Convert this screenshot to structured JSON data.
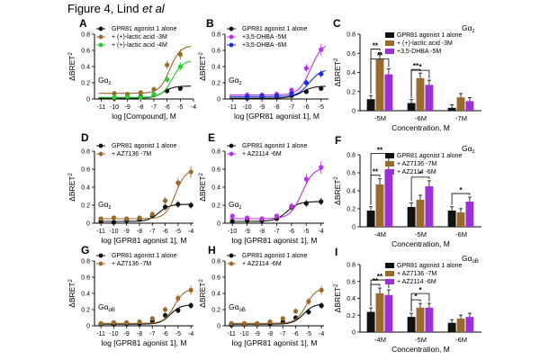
{
  "figure": {
    "title": "Figure 4, Lind ",
    "title_italic": "et al"
  },
  "colors": {
    "black": "#111111",
    "brown": "#9a6a2c",
    "green": "#2bcc2b",
    "magenta": "#b633e6",
    "blue": "#1c2fd8",
    "purple": "#9d2fd6"
  },
  "chart_data": [
    {
      "id": "A",
      "type": "line",
      "title": "",
      "xlabel": "log [Compound], M",
      "ylabel": "ΔBRET²",
      "inset": "Gαz",
      "inset_sub": "z",
      "xticks": [
        "-11",
        "-10",
        "-9",
        "-8",
        "-7",
        "-6",
        "-5",
        "-4"
      ],
      "xlim": [
        -11.5,
        -4
      ],
      "ylim": [
        0,
        0.8
      ],
      "yticks": [
        0,
        0.2,
        0.4,
        0.6,
        0.8
      ],
      "legend": [
        "GPR81 agonist 1 alone",
        "+ (+)-lactic acid -3M",
        "+ (+)-lactic acid -4M"
      ],
      "series": [
        {
          "name": "GPR81 agonist 1 alone",
          "color": "black",
          "x": [
            -10,
            -9,
            -8,
            -7,
            -6,
            -5
          ],
          "y": [
            0.01,
            0.02,
            0.03,
            0.05,
            0.1,
            0.13
          ],
          "fit": {
            "bottom": 0.01,
            "top": 0.16,
            "ec50": -6.3
          }
        },
        {
          "name": "+ (+)-lactic acid -3M",
          "color": "brown",
          "x": [
            -10,
            -9,
            -8,
            -7,
            -6,
            -5
          ],
          "y": [
            0.07,
            0.06,
            0.08,
            0.12,
            0.42,
            0.55
          ],
          "fit": {
            "bottom": 0.07,
            "top": 0.66,
            "ec50": -5.8
          }
        },
        {
          "name": "+ (+)-lactic acid -4M",
          "color": "green",
          "x": [
            -10,
            -9,
            -8,
            -7,
            -6,
            -5
          ],
          "y": [
            0.02,
            0.03,
            0.02,
            0.06,
            0.24,
            0.4
          ],
          "fit": {
            "bottom": 0.02,
            "top": 0.48,
            "ec50": -5.6
          }
        }
      ]
    },
    {
      "id": "B",
      "type": "line",
      "title": "",
      "xlabel": "log [GPR81 agonist 1], M",
      "ylabel": "ΔBRET²",
      "inset": "Gαz",
      "inset_sub": "z",
      "xticks": [
        "-11",
        "-10",
        "-9",
        "-8",
        "-7",
        "-6",
        "-5"
      ],
      "xlim": [
        -11.5,
        -4.5
      ],
      "ylim": [
        0,
        0.8
      ],
      "yticks": [
        0,
        0.2,
        0.4,
        0.6,
        0.8
      ],
      "legend": [
        "GPR81 agonist 1 alone",
        "+3,5-DHBA -5M",
        "+3,5-DHBA -6M"
      ],
      "series": [
        {
          "name": "GPR81 agonist 1 alone",
          "color": "black",
          "x": [
            -10,
            -9,
            -8,
            -7,
            -6,
            -5
          ],
          "y": [
            0.01,
            0.02,
            0.02,
            0.04,
            0.09,
            0.13
          ],
          "fit": {
            "bottom": 0.01,
            "top": 0.16,
            "ec50": -6.3
          }
        },
        {
          "name": "+3,5-DHBA -5M",
          "color": "magenta",
          "x": [
            -10,
            -9,
            -8,
            -7,
            -6,
            -5
          ],
          "y": [
            0.05,
            0.05,
            0.06,
            0.11,
            0.38,
            0.61
          ],
          "fit": {
            "bottom": 0.05,
            "top": 0.7,
            "ec50": -5.7
          }
        },
        {
          "name": "+3,5-DHBA -6M",
          "color": "blue",
          "x": [
            -10,
            -9,
            -8,
            -7,
            -6,
            -5
          ],
          "y": [
            0.03,
            0.04,
            0.04,
            0.07,
            0.2,
            0.31
          ],
          "fit": {
            "bottom": 0.03,
            "top": 0.37,
            "ec50": -5.8
          }
        }
      ]
    },
    {
      "id": "C",
      "type": "bar",
      "xlabel": "Concentration, M",
      "ylabel": "ΔBRET²",
      "inset": "Gαz",
      "inset_sub": "z",
      "categories": [
        "-5M",
        "-6M",
        "-7M"
      ],
      "ylim": [
        0,
        0.8
      ],
      "yticks": [
        0,
        0.2,
        0.4,
        0.6,
        0.8
      ],
      "legend": [
        "GPR81 agonist 1 alone",
        "+ (+)-lactic acid -3M",
        "+3,5-DHBA -5M"
      ],
      "series": [
        {
          "name": "GPR81 agonist 1 alone",
          "color": "black",
          "values": [
            0.12,
            0.08,
            0.03
          ]
        },
        {
          "name": "+ (+)-lactic acid -3M",
          "color": "brown",
          "values": [
            0.54,
            0.34,
            0.14
          ]
        },
        {
          "name": "+3,5-DHBA -5M",
          "color": "purple",
          "values": [
            0.38,
            0.27,
            0.1
          ]
        }
      ],
      "significance": [
        {
          "group": 0,
          "from": 0,
          "to": 1,
          "label": "**"
        },
        {
          "group": 0,
          "from": 0,
          "to": 2,
          "label": "**"
        },
        {
          "group": 1,
          "from": 0,
          "to": 1,
          "label": "**"
        },
        {
          "group": 1,
          "from": 0,
          "to": 2,
          "label": "*"
        }
      ]
    },
    {
      "id": "D",
      "type": "line",
      "xlabel": "log [GPR81 agonist 1], M",
      "ylabel": "ΔBRET²",
      "inset": "Gαz",
      "inset_sub": "z",
      "xticks": [
        "-11",
        "-10",
        "-9",
        "-8",
        "-7",
        "-6",
        "-5",
        "-4"
      ],
      "xlim": [
        -11.5,
        -3.8
      ],
      "ylim": [
        0,
        0.8
      ],
      "yticks": [
        0,
        0.2,
        0.4,
        0.6,
        0.8
      ],
      "legend": [
        "GPR81 agonist 1 alone",
        "+ AZ7136 -7M"
      ],
      "series": [
        {
          "name": "GPR81 agonist 1 alone",
          "color": "black",
          "x": [
            -11,
            -10,
            -9,
            -8,
            -7,
            -6,
            -5,
            -4
          ],
          "y": [
            0.02,
            0.01,
            0.03,
            0.04,
            0.08,
            0.18,
            0.21,
            0.2
          ],
          "fit": {
            "bottom": 0.02,
            "top": 0.21,
            "ec50": -6.5
          }
        },
        {
          "name": "+ AZ7136 -7M",
          "color": "brown",
          "x": [
            -11,
            -10,
            -9,
            -8,
            -7,
            -6,
            -5,
            -4
          ],
          "y": [
            0.05,
            0.06,
            0.05,
            0.06,
            0.1,
            0.25,
            0.45,
            0.57
          ],
          "fit": {
            "bottom": 0.05,
            "top": 0.6,
            "ec50": -5.2
          }
        }
      ]
    },
    {
      "id": "E",
      "type": "line",
      "xlabel": "log [GPR81 agonist 1], M",
      "ylabel": "ΔBRET²",
      "inset": "Gαz",
      "inset_sub": "z",
      "xticks": [
        "-10",
        "-9",
        "-8",
        "-7",
        "-6",
        "-5",
        "-4"
      ],
      "xlim": [
        -10.5,
        -3.8
      ],
      "ylim": [
        0,
        0.8
      ],
      "yticks": [
        0,
        0.2,
        0.4,
        0.6,
        0.8
      ],
      "legend": [
        "GPR81 agonist 1 alone",
        "+ AZ2114 -6M"
      ],
      "series": [
        {
          "name": "GPR81 agonist 1 alone",
          "color": "black",
          "x": [
            -10,
            -9,
            -8,
            -7,
            -6,
            -5,
            -4
          ],
          "y": [
            0.02,
            0.03,
            0.03,
            0.05,
            0.18,
            0.22,
            0.24
          ],
          "fit": {
            "bottom": 0.02,
            "top": 0.24,
            "ec50": -6.3
          }
        },
        {
          "name": "+ AZ2114 -6M",
          "color": "magenta",
          "x": [
            -10,
            -9,
            -8,
            -7,
            -6,
            -5,
            -4
          ],
          "y": [
            0.08,
            0.06,
            0.05,
            0.08,
            0.19,
            0.49,
            0.62
          ],
          "fit": {
            "bottom": 0.05,
            "top": 0.62,
            "ec50": -5.3
          }
        }
      ]
    },
    {
      "id": "F",
      "type": "bar",
      "xlabel": "Concentration, M",
      "ylabel": "ΔBRET²",
      "inset": "Gαz",
      "inset_sub": "z",
      "categories": [
        "-4M",
        "-5M",
        "-6M"
      ],
      "ylim": [
        0,
        0.8
      ],
      "yticks": [
        0,
        0.2,
        0.4,
        0.6,
        0.8
      ],
      "legend": [
        "GPR81 agonist 1 alone",
        "+ AZ7136 -7M",
        "+ AZ2114 -6M"
      ],
      "series": [
        {
          "name": "GPR81 agonist 1 alone",
          "color": "black",
          "values": [
            0.18,
            0.22,
            0.18
          ]
        },
        {
          "name": "+ AZ7136 -7M",
          "color": "brown",
          "values": [
            0.47,
            0.3,
            0.16
          ]
        },
        {
          "name": "+ AZ2114 -6M",
          "color": "purple",
          "values": [
            0.63,
            0.45,
            0.28
          ]
        }
      ],
      "significance": [
        {
          "group": 0,
          "from": 0,
          "to": 1,
          "label": "**"
        },
        {
          "group": 0,
          "from": 0,
          "to": 2,
          "label": "**"
        },
        {
          "group": 1,
          "from": 0,
          "to": 2,
          "label": "*"
        },
        {
          "group": 2,
          "from": 0,
          "to": 2,
          "label": "*"
        }
      ]
    },
    {
      "id": "G",
      "type": "line",
      "xlabel": "log [GPR81 agonist 1], M",
      "ylabel": "ΔBRET²",
      "inset": "GαoB",
      "inset_sub": "oB",
      "xticks": [
        "-11",
        "-10",
        "-9",
        "-8",
        "-7",
        "-6",
        "-5",
        "-4"
      ],
      "xlim": [
        -11.5,
        -3.8
      ],
      "ylim": [
        0,
        0.8
      ],
      "yticks": [
        0,
        0.2,
        0.4,
        0.6,
        0.8
      ],
      "legend": [
        "GPR81 agonist 1 alone",
        "+ AZ7136 -7M"
      ],
      "series": [
        {
          "name": "GPR81 agonist 1 alone",
          "color": "black",
          "x": [
            -11,
            -10,
            -9,
            -8,
            -7,
            -6,
            -5,
            -4
          ],
          "y": [
            0.02,
            0.02,
            0.03,
            0.03,
            0.06,
            0.13,
            0.19,
            0.25
          ],
          "fit": {
            "bottom": 0.02,
            "top": 0.26,
            "ec50": -5.6
          }
        },
        {
          "name": "+ AZ7136 -7M",
          "color": "brown",
          "x": [
            -11,
            -10,
            -9,
            -8,
            -7,
            -6,
            -5,
            -4
          ],
          "y": [
            0.03,
            0.04,
            0.04,
            0.05,
            0.09,
            0.2,
            0.34,
            0.44
          ],
          "fit": {
            "bottom": 0.03,
            "top": 0.46,
            "ec50": -5.3
          }
        }
      ]
    },
    {
      "id": "H",
      "type": "line",
      "xlabel": "log [GPR81 agonist 1], M",
      "ylabel": "ΔBRET²",
      "inset": "GαoB",
      "inset_sub": "oB",
      "xticks": [
        "-11",
        "-10",
        "-9",
        "-8",
        "-7",
        "-6",
        "-5",
        "-4"
      ],
      "xlim": [
        -11.5,
        -3.8
      ],
      "ylim": [
        0,
        0.8
      ],
      "yticks": [
        0,
        0.2,
        0.4,
        0.6,
        0.8
      ],
      "legend": [
        "GPR81 agonist 1 alone",
        "+ AZ2114 -6M"
      ],
      "series": [
        {
          "name": "GPR81 agonist 1 alone",
          "color": "black",
          "x": [
            -11,
            -10,
            -9,
            -8,
            -7,
            -6,
            -5,
            -4
          ],
          "y": [
            0.01,
            0.02,
            0.02,
            0.03,
            0.05,
            0.1,
            0.17,
            0.25
          ],
          "fit": {
            "bottom": 0.02,
            "top": 0.27,
            "ec50": -5.4
          }
        },
        {
          "name": "+ AZ2114 -6M",
          "color": "brown",
          "x": [
            -11,
            -10,
            -9,
            -8,
            -7,
            -6,
            -5,
            -4
          ],
          "y": [
            0.03,
            0.03,
            0.03,
            0.05,
            0.09,
            0.18,
            0.3,
            0.44
          ],
          "fit": {
            "bottom": 0.03,
            "top": 0.47,
            "ec50": -5.2
          }
        }
      ]
    },
    {
      "id": "I",
      "type": "bar",
      "xlabel": "Concentration, M",
      "ylabel": "ΔBRET²",
      "inset": "GαoB",
      "inset_sub": "oB",
      "categories": [
        "-4M",
        "-5M",
        "-6M"
      ],
      "ylim": [
        0,
        0.8
      ],
      "yticks": [
        0,
        0.2,
        0.4,
        0.6,
        0.8
      ],
      "legend": [
        "GPR81 agonist 1 alone",
        "+ AZ7136 -7M",
        "+ AZ2114 -6M"
      ],
      "series": [
        {
          "name": "GPR81 agonist 1 alone",
          "color": "black",
          "values": [
            0.24,
            0.18,
            0.11
          ]
        },
        {
          "name": "+ AZ7136 -7M",
          "color": "brown",
          "values": [
            0.46,
            0.29,
            0.16
          ]
        },
        {
          "name": "+ AZ2114 -6M",
          "color": "purple",
          "values": [
            0.44,
            0.29,
            0.18
          ]
        }
      ],
      "significance": [
        {
          "group": 0,
          "from": 0,
          "to": 1,
          "label": "**"
        },
        {
          "group": 0,
          "from": 0,
          "to": 2,
          "label": "**"
        },
        {
          "group": 1,
          "from": 0,
          "to": 1,
          "label": "*"
        },
        {
          "group": 1,
          "from": 0,
          "to": 2,
          "label": "*"
        }
      ]
    }
  ]
}
